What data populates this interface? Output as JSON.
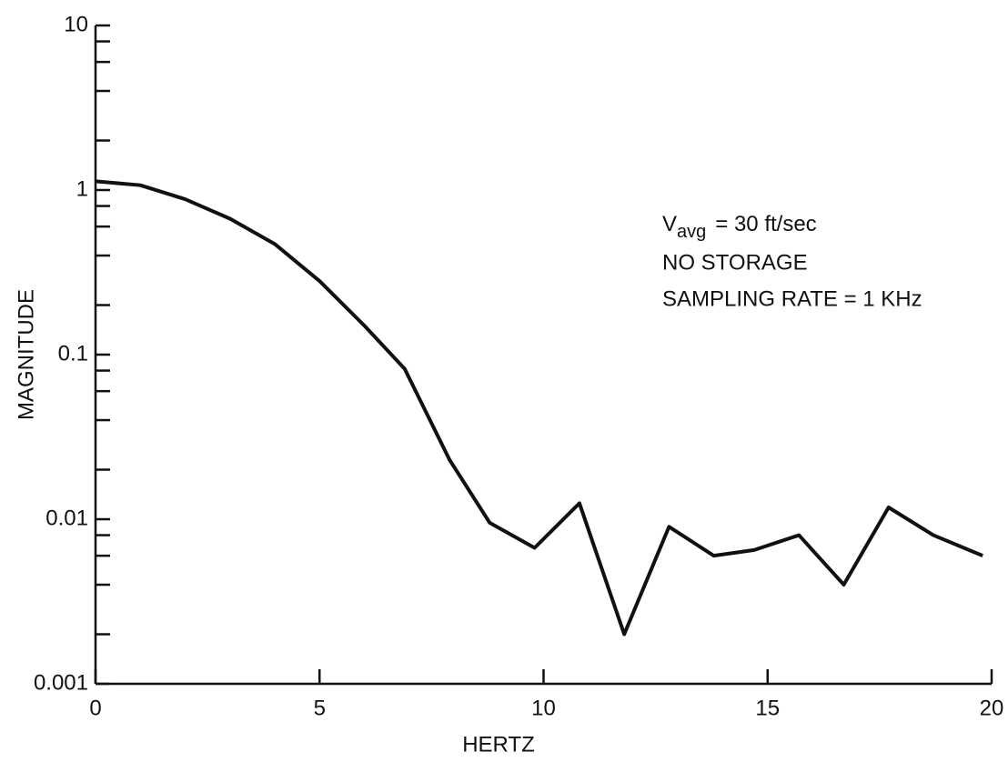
{
  "chart_data": {
    "type": "line",
    "x_label": "HERTZ",
    "y_label": "MAGNITUDE",
    "annotation": {
      "v": "V",
      "sub": "avg",
      "rest": "= 30 ft/sec",
      "line2": "NO STORAGE",
      "line3": "SAMPLING RATE = 1 KHz"
    },
    "x": [
      0,
      1,
      2,
      3,
      4,
      5,
      6,
      6.9,
      7.9,
      8.8,
      9.8,
      10.8,
      11.8,
      12.8,
      13.8,
      14.7,
      15.7,
      16.7,
      17.7,
      18.7,
      19.8
    ],
    "series": [
      {
        "color": "#111111",
        "values": [
          1.13,
          1.07,
          0.88,
          0.67,
          0.47,
          0.28,
          0.15,
          0.082,
          0.023,
          0.0095,
          0.0067,
          0.0125,
          0.002,
          0.009,
          0.006,
          0.0065,
          0.008,
          0.004,
          0.0118,
          0.008,
          0.006
        ]
      }
    ],
    "xlim": [
      0,
      20
    ],
    "xticks": [
      0,
      5,
      10,
      15,
      20
    ],
    "ylim": [
      0.001,
      10
    ],
    "ylog": true,
    "yticks": [
      0.001,
      0.01,
      0.1,
      1,
      10
    ],
    "minor_yticks": [
      0.002,
      0.004,
      0.006,
      0.008,
      0.02,
      0.04,
      0.06,
      0.08,
      0.2,
      0.4,
      0.6,
      0.8,
      2,
      4,
      6,
      8
    ]
  }
}
